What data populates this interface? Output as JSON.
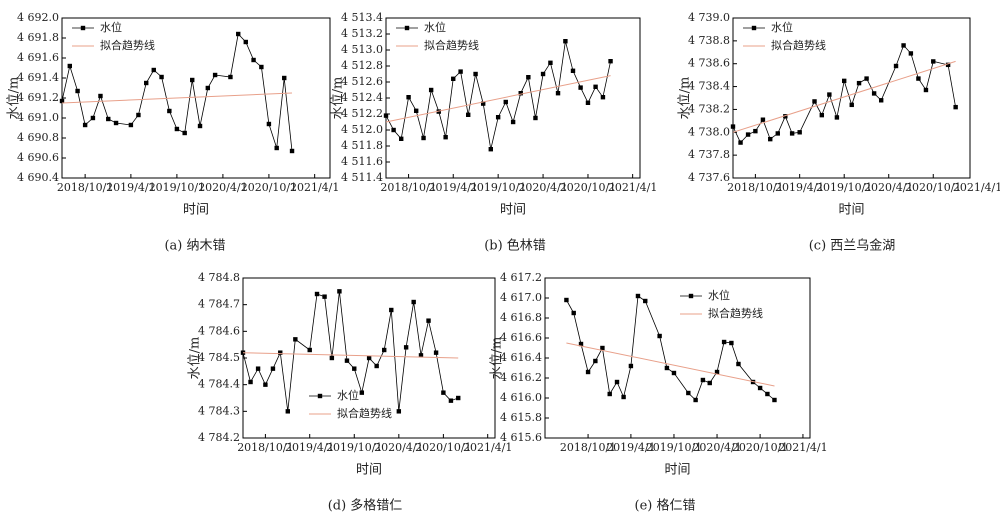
{
  "chart_data": [
    {
      "type": "line",
      "caption": "(a) 纳木错",
      "xlabel": "时间",
      "ylabel": "水位/m",
      "legend": "upper left",
      "xlim": [
        "2018/7/1",
        "2021/6/1"
      ],
      "xticks": [
        "2018/10/1",
        "2019/4/1",
        "2019/10/1",
        "2020/4/1",
        "2020/10/1",
        "2021/4/1"
      ],
      "ylim": [
        4690.4,
        4692.0
      ],
      "yticks": [
        {
          "value": 4690.4,
          "label": "4 690.4"
        },
        {
          "value": 4690.6,
          "label": "4 690.6"
        },
        {
          "value": 4690.8,
          "label": "4 690.8"
        },
        {
          "value": 4691.0,
          "label": "4 691.0"
        },
        {
          "value": 4691.2,
          "label": "4 691.2"
        },
        {
          "value": 4691.4,
          "label": "4 691.4"
        },
        {
          "value": 4691.6,
          "label": "4 691.6"
        },
        {
          "value": 4691.8,
          "label": "4 691.8"
        },
        {
          "value": 4692.0,
          "label": "4 692.0"
        }
      ],
      "series": [
        {
          "name": "水位",
          "color": "#000000",
          "x": [
            "2018/7/1",
            "2018/8/1",
            "2018/9/1",
            "2018/10/1",
            "2018/11/1",
            "2018/12/1",
            "2019/1/1",
            "2019/2/1",
            "2019/4/1",
            "2019/5/1",
            "2019/6/1",
            "2019/7/1",
            "2019/8/1",
            "2019/9/1",
            "2019/10/1",
            "2019/11/1",
            "2019/12/1",
            "2020/1/1",
            "2020/2/1",
            "2020/3/1",
            "2020/5/1",
            "2020/6/1",
            "2020/7/1",
            "2020/8/1",
            "2020/9/1",
            "2020/10/1",
            "2020/11/1",
            "2020/12/1",
            "2021/1/1"
          ],
          "values": [
            4691.17,
            4691.52,
            4691.27,
            4690.93,
            4691.0,
            4691.22,
            4690.99,
            4690.95,
            4690.93,
            4691.03,
            4691.35,
            4691.48,
            4691.41,
            4691.07,
            4690.89,
            4690.85,
            4691.38,
            4690.92,
            4691.3,
            4691.43,
            4691.41,
            4691.84,
            4691.76,
            4691.58,
            4691.51,
            4690.94,
            4690.7,
            4691.4,
            4690.67
          ]
        },
        {
          "name": "拟合趋势线",
          "color": "#e8a08a",
          "x": [
            "2018/7/1",
            "2021/1/1"
          ],
          "values": [
            4691.15,
            4691.25
          ]
        }
      ]
    },
    {
      "type": "line",
      "caption": "(b) 色林错",
      "xlabel": "时间",
      "ylabel": "水位/m",
      "legend": "upper left",
      "xlim": [
        "2018/7/1",
        "2021/5/1"
      ],
      "xticks": [
        "2018/10/1",
        "2019/4/1",
        "2019/10/1",
        "2020/4/1",
        "2020/10/1",
        "2021/4/1"
      ],
      "ylim": [
        4511.4,
        4513.4
      ],
      "yticks": [
        {
          "value": 4511.4,
          "label": "4 511.4"
        },
        {
          "value": 4511.6,
          "label": "4 511.6"
        },
        {
          "value": 4511.8,
          "label": "4 511.8"
        },
        {
          "value": 4512.0,
          "label": "4 512.0"
        },
        {
          "value": 4512.2,
          "label": "4 512.2"
        },
        {
          "value": 4512.4,
          "label": "4 512.4"
        },
        {
          "value": 4512.6,
          "label": "4 512.6"
        },
        {
          "value": 4512.8,
          "label": "4 512.8"
        },
        {
          "value": 4513.0,
          "label": "4 513.0"
        },
        {
          "value": 4513.2,
          "label": "4 513.2"
        },
        {
          "value": 4513.4,
          "label": "4 513.4"
        }
      ],
      "series": [
        {
          "name": "水位",
          "color": "#000000",
          "x": [
            "2018/7/1",
            "2018/8/1",
            "2018/9/1",
            "2018/10/1",
            "2018/11/1",
            "2018/12/1",
            "2019/1/1",
            "2019/2/1",
            "2019/3/1",
            "2019/4/1",
            "2019/5/1",
            "2019/6/1",
            "2019/7/1",
            "2019/8/1",
            "2019/9/1",
            "2019/10/1",
            "2019/11/1",
            "2019/12/1",
            "2020/1/1",
            "2020/2/1",
            "2020/3/1",
            "2020/4/1",
            "2020/5/1",
            "2020/6/1",
            "2020/7/1",
            "2020/8/1",
            "2020/9/1",
            "2020/10/1",
            "2020/11/1",
            "2020/12/1",
            "2021/1/1"
          ],
          "values": [
            4512.18,
            4512.0,
            4511.89,
            4512.41,
            4512.24,
            4511.9,
            4512.5,
            4512.23,
            4511.91,
            4512.64,
            4512.73,
            4512.19,
            4512.7,
            4512.33,
            4511.76,
            4512.16,
            4512.35,
            4512.1,
            4512.46,
            4512.66,
            4512.15,
            4512.7,
            4512.84,
            4512.46,
            4513.11,
            4512.74,
            4512.53,
            4512.34,
            4512.54,
            4512.41,
            4512.86
          ]
        },
        {
          "name": "拟合趋势线",
          "color": "#e8a08a",
          "x": [
            "2018/7/1",
            "2021/1/1"
          ],
          "values": [
            4512.1,
            4512.68
          ]
        }
      ]
    },
    {
      "type": "line",
      "caption": "(c) 西兰乌金湖",
      "xlabel": "时间",
      "ylabel": "水位/m",
      "legend": "upper left",
      "xlim": [
        "2018/7/1",
        "2021/3/1"
      ],
      "xticks": [
        "2018/10/1",
        "2019/4/1",
        "2019/10/1",
        "2020/4/1",
        "2020/10/1",
        "2021/4/1"
      ],
      "ylim": [
        4737.6,
        4739.0
      ],
      "yticks": [
        {
          "value": 4737.6,
          "label": "4 737.6"
        },
        {
          "value": 4737.8,
          "label": "4 737.8"
        },
        {
          "value": 4738.0,
          "label": "4 738.0"
        },
        {
          "value": 4738.2,
          "label": "4 738.2"
        },
        {
          "value": 4738.4,
          "label": "4 738.4"
        },
        {
          "value": 4738.6,
          "label": "4 738.6"
        },
        {
          "value": 4738.8,
          "label": "4 738.8"
        },
        {
          "value": 4739.0,
          "label": "4 739.0"
        }
      ],
      "series": [
        {
          "name": "水位",
          "color": "#000000",
          "x": [
            "2018/7/1",
            "2018/8/1",
            "2018/9/1",
            "2018/10/1",
            "2018/11/1",
            "2018/12/1",
            "2019/1/1",
            "2019/2/1",
            "2019/3/1",
            "2019/4/1",
            "2019/6/1",
            "2019/7/1",
            "2019/8/1",
            "2019/9/1",
            "2019/10/1",
            "2019/11/1",
            "2019/12/1",
            "2020/1/1",
            "2020/2/1",
            "2020/3/1",
            "2020/5/1",
            "2020/6/1",
            "2020/7/1",
            "2020/8/1",
            "2020/9/1",
            "2020/10/1",
            "2020/12/1",
            "2021/1/1"
          ],
          "values": [
            4738.05,
            4737.91,
            4737.98,
            4738.01,
            4738.11,
            4737.94,
            4737.99,
            4738.14,
            4737.99,
            4738.0,
            4738.27,
            4738.15,
            4738.33,
            4738.13,
            4738.45,
            4738.24,
            4738.43,
            4738.47,
            4738.34,
            4738.28,
            4738.58,
            4738.76,
            4738.69,
            4738.47,
            4738.37,
            4738.62,
            4738.59,
            4738.22
          ]
        },
        {
          "name": "拟合趋势线",
          "color": "#e8a08a",
          "x": [
            "2018/7/1",
            "2021/1/1"
          ],
          "values": [
            4738.0,
            4738.62
          ]
        }
      ]
    },
    {
      "type": "line",
      "caption": "(d) 多格错仁",
      "xlabel": "时间",
      "ylabel": "水位/m",
      "legend": "lower center",
      "xlim": [
        "2018/7/1",
        "2021/5/1"
      ],
      "xticks": [
        "2018/10/1",
        "2019/4/1",
        "2019/10/1",
        "2020/4/1",
        "2020/10/1",
        "2021/4/1"
      ],
      "ylim": [
        4784.2,
        4784.8
      ],
      "yticks": [
        {
          "value": 4784.2,
          "label": "4 784.2"
        },
        {
          "value": 4784.3,
          "label": "4 784.3"
        },
        {
          "value": 4784.4,
          "label": "4 784.4"
        },
        {
          "value": 4784.5,
          "label": "4 784.5"
        },
        {
          "value": 4784.6,
          "label": "4 784.6"
        },
        {
          "value": 4784.7,
          "label": "4 784.7"
        },
        {
          "value": 4784.8,
          "label": "4 784.8"
        }
      ],
      "series": [
        {
          "name": "水位",
          "color": "#000000",
          "x": [
            "2018/7/1",
            "2018/8/1",
            "2018/9/1",
            "2018/10/1",
            "2018/11/1",
            "2018/12/1",
            "2019/1/1",
            "2019/2/1",
            "2019/4/1",
            "2019/5/1",
            "2019/6/1",
            "2019/7/1",
            "2019/8/1",
            "2019/9/1",
            "2019/10/1",
            "2019/11/1",
            "2019/12/1",
            "2020/1/1",
            "2020/2/1",
            "2020/3/1",
            "2020/4/1",
            "2020/5/1",
            "2020/6/1",
            "2020/7/1",
            "2020/8/1",
            "2020/9/1",
            "2020/10/1",
            "2020/11/1",
            "2020/12/1"
          ],
          "values": [
            4784.52,
            4784.41,
            4784.46,
            4784.4,
            4784.46,
            4784.52,
            4784.3,
            4784.57,
            4784.53,
            4784.74,
            4784.73,
            4784.5,
            4784.75,
            4784.49,
            4784.46,
            4784.37,
            4784.5,
            4784.47,
            4784.53,
            4784.68,
            4784.3,
            4784.54,
            4784.71,
            4784.51,
            4784.64,
            4784.52,
            4784.37,
            4784.34,
            4784.35
          ]
        },
        {
          "name": "拟合趋势线",
          "color": "#e8a08a",
          "x": [
            "2018/7/1",
            "2020/12/1"
          ],
          "values": [
            4784.52,
            4784.5
          ]
        }
      ]
    },
    {
      "type": "line",
      "caption": "(e) 格仁错",
      "xlabel": "时间",
      "ylabel": "水位/m",
      "legend": "upper right",
      "xlim": [
        "2018/4/1",
        "2021/5/1"
      ],
      "xticks": [
        "2018/10/1",
        "2019/4/1",
        "2019/10/1",
        "2020/4/1",
        "2020/10/1",
        "2021/4/1"
      ],
      "ylim": [
        4615.6,
        4617.2
      ],
      "yticks": [
        {
          "value": 4615.6,
          "label": "4 615.6"
        },
        {
          "value": 4615.8,
          "label": "4 615.8"
        },
        {
          "value": 4616.0,
          "label": "4 616.0"
        },
        {
          "value": 4616.2,
          "label": "4 616.2"
        },
        {
          "value": 4616.4,
          "label": "4 616.4"
        },
        {
          "value": 4616.6,
          "label": "4 616.6"
        },
        {
          "value": 4616.8,
          "label": "4 616.8"
        },
        {
          "value": 4617.0,
          "label": "4 617.0"
        },
        {
          "value": 4617.2,
          "label": "4 617.2"
        }
      ],
      "series": [
        {
          "name": "水位",
          "color": "#000000",
          "x": [
            "2018/7/1",
            "2018/8/1",
            "2018/9/1",
            "2018/10/1",
            "2018/11/1",
            "2018/12/1",
            "2019/1/1",
            "2019/2/1",
            "2019/3/1",
            "2019/4/1",
            "2019/5/1",
            "2019/6/1",
            "2019/8/1",
            "2019/9/1",
            "2019/10/1",
            "2019/12/1",
            "2020/1/1",
            "2020/2/1",
            "2020/3/1",
            "2020/4/1",
            "2020/5/1",
            "2020/6/1",
            "2020/7/1",
            "2020/9/1",
            "2020/10/1",
            "2020/11/1",
            "2020/12/1"
          ],
          "values": [
            4616.98,
            4616.85,
            4616.54,
            4616.26,
            4616.37,
            4616.5,
            4616.04,
            4616.16,
            4616.01,
            4616.32,
            4617.02,
            4616.97,
            4616.62,
            4616.3,
            4616.25,
            4616.05,
            4615.98,
            4616.18,
            4616.15,
            4616.26,
            4616.56,
            4616.55,
            4616.34,
            4616.16,
            4616.1,
            4616.04,
            4615.98
          ]
        },
        {
          "name": "拟合趋势线",
          "color": "#e8a08a",
          "x": [
            "2018/7/1",
            "2020/12/1"
          ],
          "values": [
            4616.55,
            4616.12
          ]
        }
      ]
    }
  ]
}
